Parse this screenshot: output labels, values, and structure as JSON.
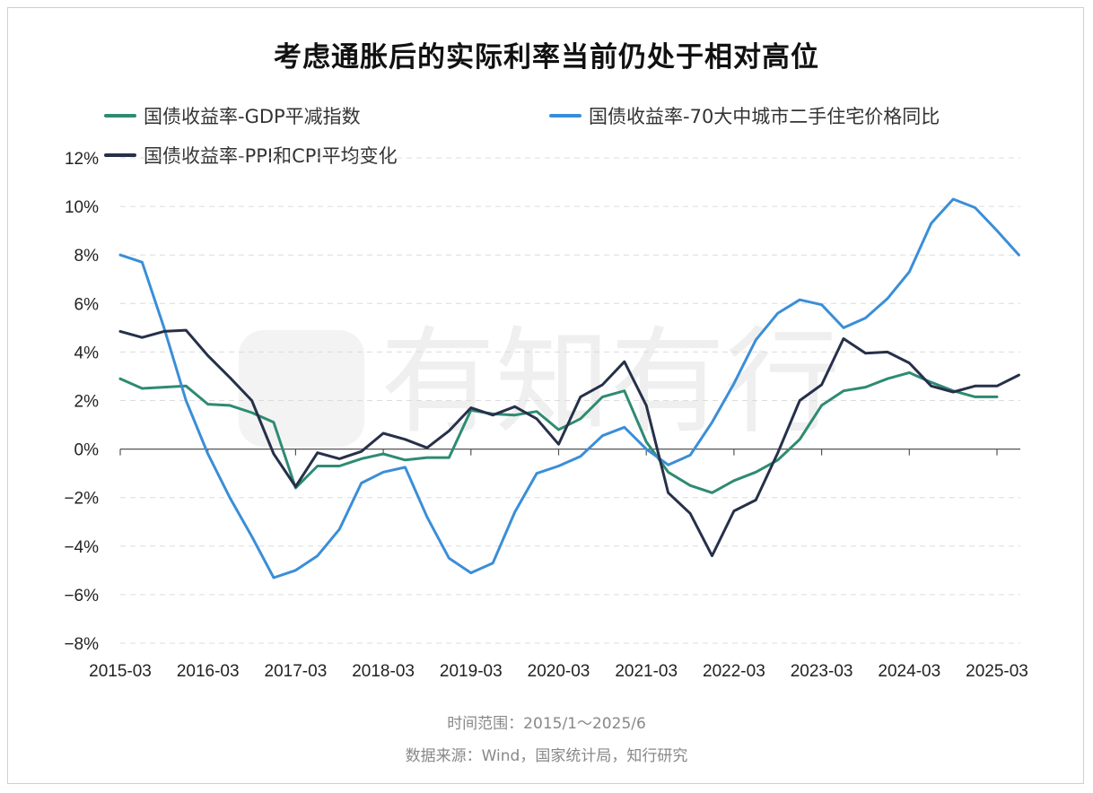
{
  "title": "考虑通胀后的实际利率当前仍处于相对高位",
  "footer": {
    "time_range": "时间范围：2015/1～2025/6",
    "source": "数据来源：Wind，国家统计局，知行研究"
  },
  "watermark": "有知有行",
  "chart_data": {
    "type": "line",
    "title": "考虑通胀后的实际利率当前仍处于相对高位",
    "ylim": [
      -8,
      12
    ],
    "yticks": [
      "12%",
      "10%",
      "8%",
      "6%",
      "4%",
      "2%",
      "0%",
      "−2%",
      "−4%",
      "−6%",
      "−8%"
    ],
    "xticks": [
      "2015-03",
      "2016-03",
      "2017-03",
      "2018-03",
      "2019-03",
      "2020-03",
      "2021-03",
      "2022-03",
      "2023-03",
      "2024-03",
      "2025-03"
    ],
    "grid": "horizontal dashed",
    "legend_position": "top",
    "x": [
      "2015-03",
      "2015-06",
      "2015-09",
      "2015-12",
      "2016-03",
      "2016-06",
      "2016-09",
      "2016-12",
      "2017-03",
      "2017-06",
      "2017-09",
      "2017-12",
      "2018-03",
      "2018-06",
      "2018-09",
      "2018-12",
      "2019-03",
      "2019-06",
      "2019-09",
      "2019-12",
      "2020-03",
      "2020-06",
      "2020-09",
      "2020-12",
      "2021-03",
      "2021-06",
      "2021-09",
      "2021-12",
      "2022-03",
      "2022-06",
      "2022-09",
      "2022-12",
      "2023-03",
      "2023-06",
      "2023-09",
      "2023-12",
      "2024-03",
      "2024-06",
      "2024-09",
      "2024-12",
      "2025-03",
      "2025-06"
    ],
    "series": [
      {
        "name": "国债收益率-GDP平减指数",
        "color": "#2e8b72",
        "values": [
          2.9,
          2.5,
          2.55,
          2.6,
          1.85,
          1.8,
          1.5,
          1.1,
          -1.6,
          -0.7,
          -0.7,
          -0.4,
          -0.2,
          -0.45,
          -0.35,
          -0.35,
          1.6,
          1.45,
          1.4,
          1.55,
          0.8,
          1.25,
          2.15,
          2.4,
          0.3,
          -0.95,
          -1.5,
          -1.8,
          -1.3,
          -0.95,
          -0.45,
          0.4,
          1.8,
          2.4,
          2.55,
          2.9,
          3.15,
          2.75,
          2.4,
          2.15,
          2.15,
          null
        ]
      },
      {
        "name": "国债收益率-70大中城市二手住宅价格同比",
        "color": "#3a8ed8",
        "values": [
          8.0,
          7.7,
          5.0,
          2.0,
          -0.2,
          -2.0,
          -3.6,
          -5.3,
          -5.0,
          -4.4,
          -3.3,
          -1.4,
          -0.95,
          -0.75,
          -2.8,
          -4.5,
          -5.1,
          -4.7,
          -2.6,
          -1.0,
          -0.7,
          -0.3,
          0.55,
          0.9,
          0.0,
          -0.65,
          -0.25,
          1.1,
          2.7,
          4.5,
          5.6,
          6.15,
          5.95,
          5.0,
          5.4,
          6.2,
          7.3,
          9.3,
          10.3,
          9.95,
          9.0,
          8.0
        ]
      },
      {
        "name": "国债收益率-PPI和CPI平均变化",
        "color": "#27304a",
        "values": [
          4.85,
          4.6,
          4.85,
          4.9,
          3.85,
          2.95,
          2.0,
          -0.2,
          -1.55,
          -0.15,
          -0.4,
          -0.1,
          0.65,
          0.4,
          0.05,
          0.75,
          1.7,
          1.4,
          1.75,
          1.25,
          0.2,
          2.15,
          2.65,
          3.6,
          1.8,
          -1.8,
          -2.65,
          -4.4,
          -2.55,
          -2.1,
          -0.15,
          2.0,
          2.65,
          4.55,
          3.95,
          4.0,
          3.55,
          2.6,
          2.35,
          2.6,
          2.6,
          3.05
        ]
      }
    ]
  }
}
